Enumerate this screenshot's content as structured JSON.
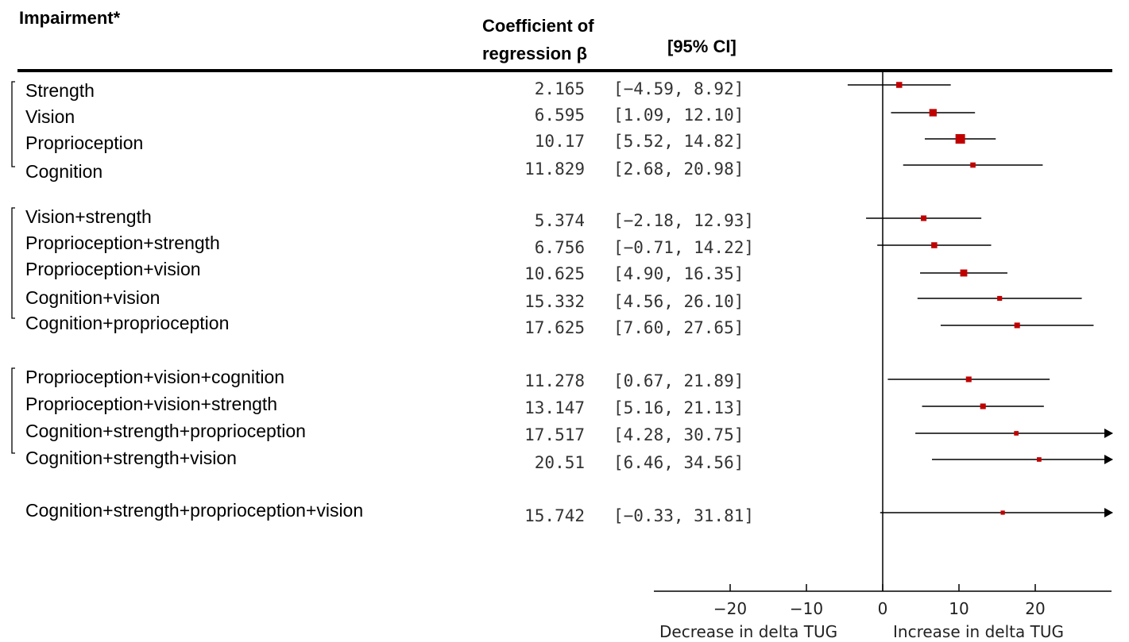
{
  "headers": {
    "impairment": "Impairment*",
    "coef_line1": "Coefficient of",
    "coef_line2": "regression β",
    "ci": "[95% CI]"
  },
  "x_axis": {
    "ticks": [
      "−20",
      "−10",
      "0",
      "10",
      "20"
    ],
    "left_label": "Decrease in delta TUG",
    "right_label": "Increase in delta TUG"
  },
  "chart_data": {
    "type": "forest",
    "xlim": [
      -30,
      30
    ],
    "x_ticks": [
      -20,
      -10,
      0,
      10,
      20
    ],
    "reference_line": 0,
    "groups": [
      {
        "rows": [
          {
            "label": "Strength",
            "beta": 2.165,
            "beta_text": "2.165",
            "ci_text": "[−4.59, 8.92]",
            "lo": -4.59,
            "hi": 8.92,
            "weight": 0.5
          },
          {
            "label": "Vision",
            "beta": 6.595,
            "beta_text": "6.595",
            "ci_text": "[1.09, 12.10]",
            "lo": 1.09,
            "hi": 12.1,
            "weight": 0.7
          },
          {
            "label": "Proprioception",
            "beta": 10.17,
            "beta_text": "10.17",
            "ci_text": "[5.52, 14.82]",
            "lo": 5.52,
            "hi": 14.82,
            "weight": 1.0
          },
          {
            "label": "Cognition",
            "beta": 11.829,
            "beta_text": "11.829",
            "ci_text": "[2.68, 20.98]",
            "lo": 2.68,
            "hi": 20.98,
            "weight": 0.4
          }
        ]
      },
      {
        "rows": [
          {
            "label": "Vision+strength",
            "beta": 5.374,
            "beta_text": "5.374",
            "ci_text": "[−2.18, 12.93]",
            "lo": -2.18,
            "hi": 12.93,
            "weight": 0.45
          },
          {
            "label": "Proprioception+strength",
            "beta": 6.756,
            "beta_text": "6.756",
            "ci_text": "[−0.71, 14.22]",
            "lo": -0.71,
            "hi": 14.22,
            "weight": 0.5
          },
          {
            "label": "Proprioception+vision",
            "beta": 10.625,
            "beta_text": "10.625",
            "ci_text": "[4.90, 16.35]",
            "lo": 4.9,
            "hi": 16.35,
            "weight": 0.65
          },
          {
            "label": "Cognition+vision",
            "beta": 15.332,
            "beta_text": "15.332",
            "ci_text": "[4.56, 26.10]",
            "lo": 4.56,
            "hi": 26.1,
            "weight": 0.35
          },
          {
            "label": "Cognition+proprioception",
            "beta": 17.625,
            "beta_text": "17.625",
            "ci_text": "[7.60, 27.65]",
            "lo": 7.6,
            "hi": 27.65,
            "weight": 0.45
          }
        ]
      },
      {
        "rows": [
          {
            "label": "Proprioception+vision+cognition",
            "beta": 11.278,
            "beta_text": "11.278",
            "ci_text": "[0.67, 21.89]",
            "lo": 0.67,
            "hi": 21.89,
            "weight": 0.45
          },
          {
            "label": "Proprioception+vision+strength",
            "beta": 13.147,
            "beta_text": "13.147",
            "ci_text": "[5.16, 21.13]",
            "lo": 5.16,
            "hi": 21.13,
            "weight": 0.45
          },
          {
            "label": "Cognition+strength+proprioception",
            "beta": 17.517,
            "beta_text": "17.517",
            "ci_text": "[4.28, 30.75]",
            "lo": 4.28,
            "hi": 30.75,
            "weight": 0.3,
            "truncated": true
          },
          {
            "label": "Cognition+strength+vision",
            "beta": 20.51,
            "beta_text": "20.51",
            "ci_text": "[6.46, 34.56]",
            "lo": 6.46,
            "hi": 34.56,
            "weight": 0.3,
            "truncated": true
          }
        ]
      },
      {
        "rows": [
          {
            "label": "Cognition+strength+proprioception+vision",
            "beta": 15.742,
            "beta_text": "15.742",
            "ci_text": "[−0.33, 31.81]",
            "lo": -0.33,
            "hi": 31.81,
            "weight": 0.25,
            "truncated": true
          }
        ]
      }
    ],
    "colors": {
      "marker": "#c00000",
      "line": "#000000"
    }
  }
}
